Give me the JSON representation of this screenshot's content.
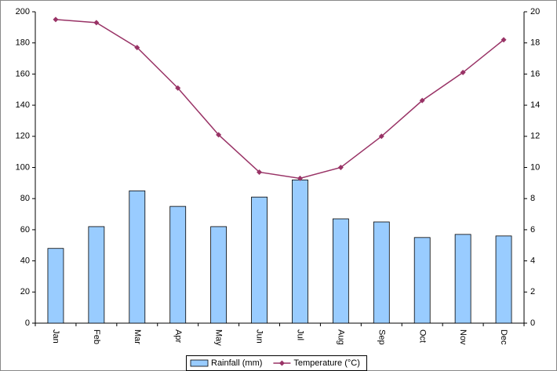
{
  "chart_data": {
    "type": "bar",
    "categories": [
      "Jan",
      "Feb",
      "Mar",
      "Apr",
      "May",
      "Jun",
      "Jul",
      "Aug",
      "Sep",
      "Oct",
      "Nov",
      "Dec"
    ],
    "series": [
      {
        "name": "Rainfall (mm)",
        "type": "bar",
        "color": "#99ccff",
        "values": [
          48,
          62,
          85,
          75,
          62,
          81,
          92,
          67,
          65,
          55,
          57,
          56
        ]
      },
      {
        "name": "Temperature (°C)",
        "type": "line",
        "axis": "y2",
        "color": "#993366",
        "values": [
          19.5,
          19.3,
          17.7,
          15.1,
          12.1,
          9.7,
          9.3,
          10.0,
          12.0,
          14.3,
          16.1,
          18.2
        ]
      }
    ],
    "ylim": [
      0,
      200
    ],
    "yticks": [
      0,
      20,
      40,
      60,
      80,
      100,
      120,
      140,
      160,
      180,
      200
    ],
    "y2lim": [
      0,
      20
    ],
    "y2ticks": [
      0,
      2,
      4,
      6,
      8,
      10,
      12,
      14,
      16,
      18,
      20
    ],
    "legend": "bottom",
    "grid": false
  }
}
